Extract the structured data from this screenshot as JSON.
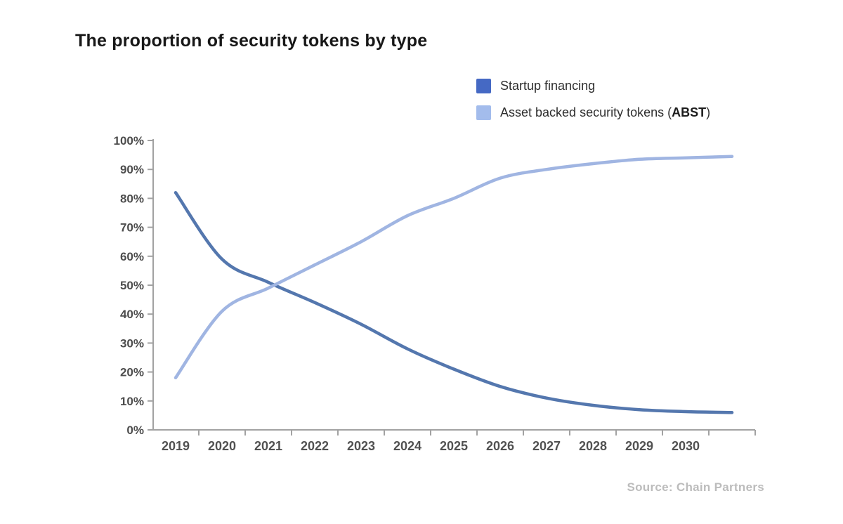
{
  "header": {
    "title": "The proportion of security tokens by type"
  },
  "legend": {
    "items": [
      {
        "label": "Startup financing",
        "color": "#4569c4"
      },
      {
        "label": "Asset backed security tokens (ABST)",
        "label_parts": {
          "pre": "Asset backed security tokens (",
          "bold": "ABST",
          "post": ")"
        },
        "color": "#a3bcec"
      }
    ]
  },
  "source": {
    "text": "Source: Chain Partners"
  },
  "chart_data": {
    "type": "line",
    "title": "The proportion of security tokens by type",
    "x": [
      2019,
      2020,
      2021,
      2022,
      2023,
      2024,
      2025,
      2026,
      2027,
      2028,
      2029,
      2030,
      2031
    ],
    "x_labels": [
      "2019",
      "2020",
      "2021",
      "2022",
      "2023",
      "2024",
      "2025",
      "2026",
      "2027",
      "2028",
      "2029",
      "2030"
    ],
    "note": "lines extend one unlabeled step past 2030",
    "series": [
      {
        "name": "Startup financing",
        "color": "#5477ae",
        "values": [
          82,
          59,
          51,
          44,
          36.5,
          28,
          21,
          15,
          11,
          8.5,
          7,
          6.3,
          6
        ]
      },
      {
        "name": "Asset backed security tokens (ABST)",
        "color": "#a0b5e2",
        "values": [
          18,
          41,
          49,
          57,
          65,
          74,
          80,
          87,
          90,
          92,
          93.5,
          94,
          94.5
        ]
      }
    ],
    "xlabel": "",
    "ylabel": "",
    "ylim": [
      0,
      100
    ],
    "y_ticks": [
      "0%",
      "10%",
      "20%",
      "30%",
      "40%",
      "50%",
      "60%",
      "70%",
      "80%",
      "90%",
      "100%"
    ],
    "grid": false,
    "legend_position": "top-right",
    "axis_color": "#a2a2a2"
  }
}
